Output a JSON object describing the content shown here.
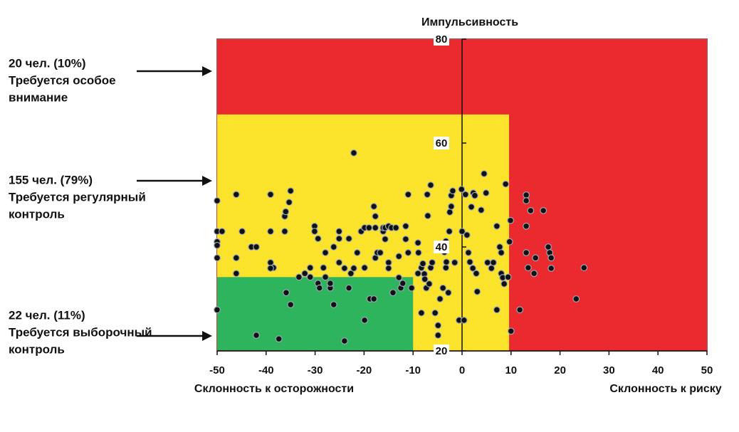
{
  "chart_data": {
    "type": "scatter",
    "title": "Импульсивность",
    "x_label_low": "Склонность к осторожности",
    "x_label_high": "Склонность к риску",
    "xlim": [
      -50,
      50
    ],
    "xticks": [
      -50,
      -40,
      -30,
      -20,
      -10,
      0,
      10,
      20,
      30,
      40,
      50
    ],
    "ylim": [
      20,
      80
    ],
    "yticks": [
      20,
      40,
      60,
      80
    ],
    "zones": [
      {
        "xlim": [
          -50,
          50
        ],
        "ylim": [
          20,
          80
        ],
        "color": "#ea2a2e"
      },
      {
        "xlim": [
          -50,
          9.6
        ],
        "ylim": [
          20,
          65.5
        ],
        "color": "#fbe22b"
      },
      {
        "xlim": [
          -50,
          -10
        ],
        "ylim": [
          20,
          34.2
        ],
        "color": "#2db45c"
      }
    ],
    "annotations": [
      [
        "20 чел. (10%)",
        "Требуется особое",
        "внимание"
      ],
      [
        "155 чел. (79%)",
        "Требуется регулярный",
        "контроль"
      ],
      [
        "22 чел. (11%)",
        "Требуется выборочный",
        "контроль"
      ]
    ],
    "point_color": "#111111",
    "x": [
      -50,
      -50,
      -50,
      -50,
      -50,
      -50,
      -49,
      -46.1,
      -46.1,
      -46.1,
      -44.9,
      -43,
      -42,
      -42,
      -39.1,
      -39.1,
      -39.1,
      -38.5,
      -39.1,
      -36.2,
      -36.2,
      -36,
      -35.9,
      -35.3,
      -35,
      -35,
      -37.4,
      -33.3,
      -32.1,
      -31,
      -31,
      -30.1,
      -30.1,
      -29.4,
      -29.1,
      -29.4,
      -27.9,
      -28.3,
      -27.9,
      -26.9,
      -26.9,
      -26.2,
      -26.2,
      -25.1,
      -25.1,
      -25.1,
      -24,
      -24,
      -23.1,
      -23.1,
      -22.7,
      -22.1,
      -22.1,
      -21.4,
      -20.6,
      -19.9,
      -19.9,
      -19.9,
      -19,
      -18.8,
      -18,
      -18,
      -17.7,
      -17.7,
      -17.7,
      -17.3,
      -16.7,
      -16.1,
      -16.1,
      -15.7,
      -15.7,
      -15,
      -15,
      -15,
      -14.4,
      -14.1,
      -13.5,
      -12.9,
      -12.9,
      -12.5,
      -12.1,
      -11.5,
      -11.5,
      -11,
      -11,
      -10.3,
      -9,
      -9,
      -8.9,
      -8.3,
      -8.3,
      -8,
      -7.7,
      -7.6,
      -7.3,
      -7.1,
      -7,
      -6.4,
      -6.7,
      -6.4,
      -6.1,
      -5.5,
      -4.9,
      -4.9,
      -4.5,
      -3.9,
      -3.6,
      -3.3,
      -3.3,
      -3.2,
      -2.8,
      -2.6,
      -2.5,
      -2.2,
      -2.2,
      -1.9,
      -1.5,
      -0.6,
      -0.1,
      0,
      0.4,
      0.7,
      1,
      1.3,
      1.6,
      1.9,
      2.2,
      2.3,
      2.6,
      2.9,
      3.1,
      3.9,
      4.5,
      4.9,
      5.2,
      6,
      6.4,
      7.1,
      7.1,
      7.7,
      8,
      8,
      8.3,
      8.6,
      8.9,
      9.4,
      9.7,
      10,
      9.9,
      11.8,
      13.1,
      13.1,
      13.1,
      13.1,
      13.5,
      14,
      14.7,
      15,
      16.6,
      17.6,
      17.9,
      18.2,
      18.2,
      23.3,
      24.9
    ],
    "y": [
      48.9,
      43,
      41,
      40.3,
      37.9,
      27.9,
      43,
      50.1,
      37.9,
      34.9,
      43,
      40,
      40,
      23,
      50.1,
      43,
      37,
      36,
      35.9,
      45.9,
      43,
      46.8,
      31.2,
      48.6,
      50.8,
      28.9,
      22.3,
      34.2,
      34.9,
      36,
      34.2,
      44,
      43,
      33,
      32.1,
      41.6,
      38.9,
      36,
      34.2,
      32.1,
      33,
      40,
      28.9,
      43,
      41.6,
      37,
      35.9,
      21.9,
      32.1,
      41.6,
      34.9,
      58.1,
      35.9,
      38.9,
      43,
      36,
      43.7,
      25.9,
      43.7,
      30,
      47.8,
      30,
      37.9,
      45.9,
      43.7,
      38.9,
      38.9,
      43,
      43.7,
      43.7,
      41.5,
      44,
      37,
      35.9,
      43.7,
      31.2,
      43.7,
      34.1,
      38.2,
      32.1,
      33,
      44,
      41.5,
      38.9,
      50.1,
      32.1,
      34.9,
      40.8,
      38.9,
      36,
      27.3,
      36.8,
      34.8,
      33.8,
      32.1,
      50.1,
      46,
      51.9,
      32.9,
      36,
      37,
      27.3,
      24.9,
      23,
      30,
      32.1,
      39,
      41.1,
      36,
      37.1,
      31.2,
      43,
      46.7,
      47.8,
      49.9,
      50.8,
      37,
      25.9,
      51.1,
      43,
      25.9,
      50.1,
      42.3,
      38.9,
      37.1,
      47.7,
      35.9,
      50.4,
      49.9,
      34.9,
      31.4,
      47.1,
      54.1,
      50.4,
      37,
      35.9,
      37,
      44,
      27.9,
      40,
      38.9,
      34.9,
      34.1,
      32.9,
      52.1,
      34.2,
      41,
      23.8,
      45.1,
      27.9,
      50,
      48.9,
      44,
      38.9,
      36,
      47,
      34.9,
      37.9,
      47,
      40,
      38.9,
      37.9,
      35.9,
      30,
      36
    ]
  }
}
